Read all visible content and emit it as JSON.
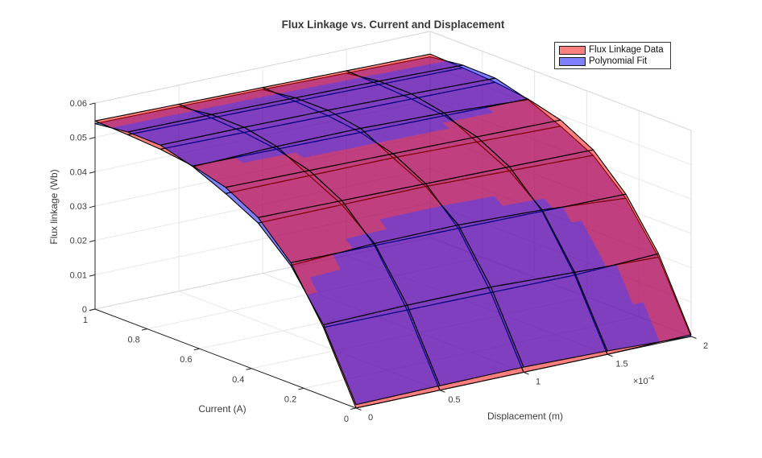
{
  "title": "Flux Linkage vs. Current and Displacement",
  "legend": {
    "swatch_border_color": "#1a1a1a",
    "box_border_color": "#3a3a3a"
  },
  "chart_data": {
    "type": "surface",
    "title": "Flux Linkage vs. Current and Displacement",
    "xlabel": "Displacement (m)",
    "ylabel": "Current (A)",
    "zlabel": "Flux linkage (Wb)",
    "legend_position": "top-right",
    "grid": true,
    "x_axis": {
      "ticks": [
        0,
        0.5,
        1,
        1.5,
        2
      ],
      "tick_labels": [
        "0",
        "0.5",
        "1",
        "1.5",
        "2"
      ],
      "multiplier_base": "×10",
      "multiplier_exponent": "-4",
      "range": [
        0,
        0.0002
      ]
    },
    "y_axis": {
      "ticks": [
        0,
        0.2,
        0.4,
        0.6,
        0.8,
        1
      ],
      "tick_labels": [
        "0",
        "0.2",
        "0.4",
        "0.6",
        "0.8",
        "1"
      ],
      "range": [
        0,
        1
      ]
    },
    "z_axis": {
      "ticks": [
        0,
        0.01,
        0.02,
        0.03,
        0.04,
        0.05,
        0.06
      ],
      "tick_labels": [
        "0",
        "0.01",
        "0.02",
        "0.03",
        "0.04",
        "0.05",
        "0.06"
      ],
      "range": [
        0,
        0.06
      ]
    },
    "current_values": [
      0,
      0.125,
      0.25,
      0.375,
      0.5,
      0.625,
      0.75,
      0.875,
      1
    ],
    "displacement_values": [
      0,
      5e-05,
      0.0001,
      0.00015,
      0.0002
    ],
    "series": [
      {
        "name": "Flux Linkage Data",
        "face_color": "#ff0000",
        "face_alpha": 0.5,
        "edge_color": "#000000",
        "z": [
          [
            0.0,
            0.0,
            0.0,
            0.0,
            0.0005
          ],
          [
            0.01987,
            0.01974,
            0.01961,
            0.01948,
            0.0205
          ],
          [
            0.03513,
            0.03491,
            0.03468,
            0.03446,
            0.03423
          ],
          [
            0.04467,
            0.04439,
            0.0441,
            0.04382,
            0.04353
          ],
          [
            0.04987,
            0.04955,
            0.04924,
            0.04892,
            0.0486
          ],
          [
            0.05248,
            0.05215,
            0.05181,
            0.05148,
            0.05114
          ],
          [
            0.05376,
            0.05342,
            0.05308,
            0.05273,
            0.05239
          ],
          [
            0.05437,
            0.05403,
            0.05368,
            0.05333,
            0.05298
          ],
          [
            0.0548,
            0.05445,
            0.0541,
            0.05375,
            0.0534
          ]
        ]
      },
      {
        "name": "Polynomial Fit",
        "face_color": "#0000ff",
        "face_alpha": 0.5,
        "edge_color": "#000000",
        "z": [
          [
            0.001,
            0.0013,
            0.0015,
            0.001,
            0.0
          ],
          [
            0.02067,
            0.02114,
            0.02121,
            0.02028,
            0.0195
          ],
          [
            0.03433,
            0.03551,
            0.03568,
            0.03486,
            0.03303
          ],
          [
            0.04307,
            0.04319,
            0.0433,
            0.04262,
            0.04193
          ],
          [
            0.04807,
            0.04805,
            0.04804,
            0.04742,
            0.0468
          ],
          [
            0.05228,
            0.05295,
            0.05301,
            0.05228,
            0.05094
          ],
          [
            0.05496,
            0.05492,
            0.05468,
            0.05423,
            0.05359
          ],
          [
            0.05517,
            0.05503,
            0.05468,
            0.05433,
            0.05378
          ],
          [
            0.054,
            0.05375,
            0.0535,
            0.05305,
            0.0526
          ]
        ]
      }
    ],
    "colors": {
      "composite_data_on_top": "#bf3f7f",
      "composite_fit_on_top": "#7f3fbf",
      "wall_grid_line": "#e7e7e7",
      "box_edge": "#d9d9d9",
      "axis_line": "#262626",
      "text": "#3c3c3c"
    }
  }
}
